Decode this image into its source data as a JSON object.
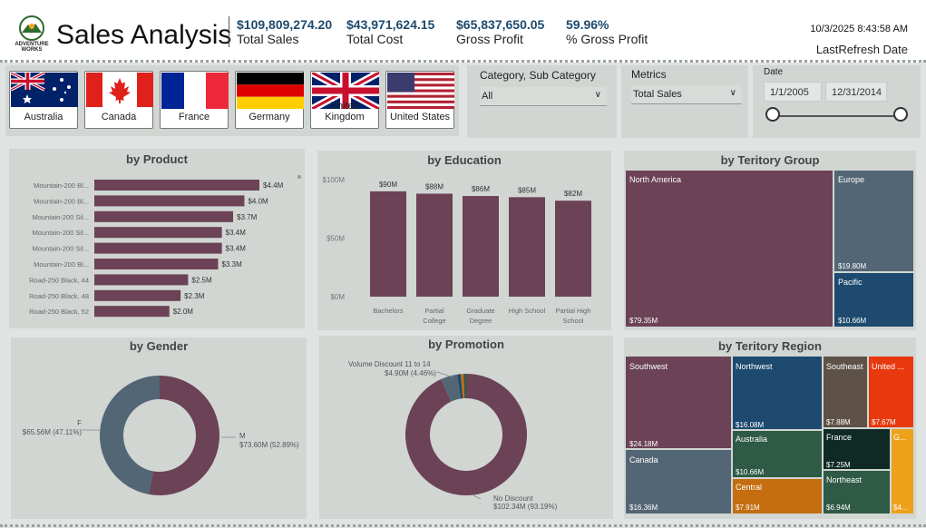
{
  "header": {
    "title": "Sales Analysis",
    "logo_text": [
      "ADVENTURE",
      "WORKS"
    ],
    "kpis": [
      {
        "value": "$109,809,274.20",
        "label": "Total Sales"
      },
      {
        "value": "$43,971,624.15",
        "label": "Total Cost"
      },
      {
        "value": "$65,837,650.05",
        "label": "Gross Profit"
      },
      {
        "value": "59.96%",
        "label": "% Gross Profit"
      }
    ],
    "refresh_datetime": "10/3/2025 8:43:58 AM",
    "refresh_label": "LastRefresh Date"
  },
  "country_slicer": [
    "Australia",
    "Canada",
    "France",
    "Germany",
    "United Kingdom",
    "United States"
  ],
  "category_slicer": {
    "title": "Category, Sub Category",
    "value": "All"
  },
  "metrics_slicer": {
    "title": "Metrics",
    "value": "Total Sales"
  },
  "date_slicer": {
    "title": "Date",
    "start": "1/1/2005",
    "end": "12/31/2014"
  },
  "colors": {
    "primary": "#6b4256",
    "slate": "#536675",
    "navy": "#1d4a6e",
    "green": "#2f5a45",
    "brown": "#5e5248",
    "red": "#e8390e",
    "orange": "#c46d11",
    "darkgreen": "#0f2a24",
    "amber": "#eea21c"
  },
  "chart_data": [
    {
      "type": "bar",
      "title": "by Product",
      "categories": [
        "Mountain-200 Bl...",
        "Mountain-200 Bl...",
        "Mountain-200 Sil...",
        "Mountain-200 Sil...",
        "Mountain-200 Sil...",
        "Mountain-200 Bl...",
        "Road-250 Black, 44",
        "Road-250 Black, 48",
        "Road-250 Black, 52"
      ],
      "values": [
        4.4,
        4.0,
        3.7,
        3.4,
        3.4,
        3.3,
        2.5,
        2.3,
        2.0
      ],
      "labels": [
        "$4.4M",
        "$4.0M",
        "$3.7M",
        "$3.4M",
        "$3.4M",
        "$3.3M",
        "$2.5M",
        "$2.3M",
        "$2.0M"
      ],
      "orientation": "horizontal"
    },
    {
      "type": "bar",
      "title": "by Education",
      "categories": [
        [
          "Bachelors"
        ],
        [
          "Partial",
          "College"
        ],
        [
          "Graduate",
          "Degree"
        ],
        [
          "High School"
        ],
        [
          "Partial High",
          "School"
        ]
      ],
      "values": [
        90,
        88,
        86,
        85,
        82
      ],
      "labels": [
        "$90M",
        "$88M",
        "$86M",
        "$85M",
        "$82M"
      ],
      "yticks": [
        "$0M",
        "$50M",
        "$100M"
      ],
      "ylim": [
        0,
        100
      ]
    },
    {
      "type": "treemap",
      "title": "by Teritory Group",
      "items": [
        {
          "name": "North America",
          "value": "$79.35M"
        },
        {
          "name": "Europe",
          "value": "$19.80M"
        },
        {
          "name": "Pacific",
          "value": "$10.66M"
        }
      ]
    },
    {
      "type": "pie",
      "title": "by Gender",
      "slices": [
        {
          "name": "M",
          "value": 73.6,
          "label": "$73.60M (52.89%)",
          "percent": 52.89
        },
        {
          "name": "F",
          "value": 65.56,
          "label": "$65.56M (47.11%)",
          "percent": 47.11
        }
      ]
    },
    {
      "type": "pie",
      "title": "by Promotion",
      "slices": [
        {
          "name": "No Discount",
          "value": 102.34,
          "label": "$102.34M (93.19%)",
          "percent": 93.19
        },
        {
          "name": "Volume Discount 11 to 14",
          "value": 4.9,
          "label": "$4.90M (4.46%)",
          "percent": 4.46
        },
        {
          "name": "",
          "value": 1.0,
          "percent": 0.9
        },
        {
          "name": "",
          "value": 0.8,
          "percent": 0.75
        },
        {
          "name": "",
          "value": 0.7,
          "percent": 0.7
        }
      ]
    },
    {
      "type": "treemap",
      "title": "by Teritory Region",
      "items": [
        {
          "name": "Southwest",
          "value": "$24.18M"
        },
        {
          "name": "Canada",
          "value": "$16.36M"
        },
        {
          "name": "Northwest",
          "value": "$16.08M"
        },
        {
          "name": "Australia",
          "value": "$10.66M"
        },
        {
          "name": "Central",
          "value": "$7.91M"
        },
        {
          "name": "Southeast",
          "value": "$7.88M"
        },
        {
          "name": "United ...",
          "value": "$7.67M"
        },
        {
          "name": "France",
          "value": "$7.25M"
        },
        {
          "name": "Northeast",
          "value": "$6.94M"
        },
        {
          "name": "G...",
          "value": "$4..."
        }
      ]
    }
  ]
}
